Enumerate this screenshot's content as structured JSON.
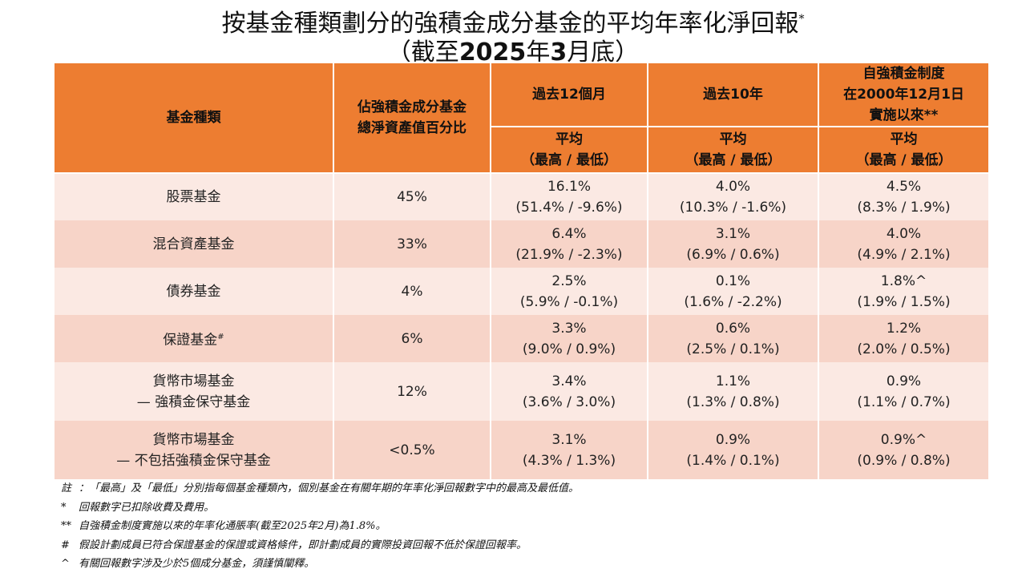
{
  "title": "按基金種類劃分的強積金成分基金的平均年率化淨回報",
  "title_mark": "*",
  "subtitle_open": "（截至",
  "subtitle_year": "2025",
  "subtitle_mid": "年",
  "subtitle_month": "3",
  "subtitle_close": "月底）",
  "header": {
    "fund_type": "基金種類",
    "share_l1": "佔強積金成分基金",
    "share_l2": "總淨資產值百分比",
    "period1": "過去12個月",
    "period2": "過去10年",
    "period3_l1": "自強積金制度",
    "period3_l2": "在2000年12月1日",
    "period3_l3": "實施以來**",
    "avg": "平均",
    "hilo": "（最高 / 最低）"
  },
  "rows": [
    {
      "name_l1": "股票基金",
      "name_l2": "",
      "share": "45%",
      "p1": "16.1%",
      "p1r": "(51.4% / -9.6%)",
      "p2": "4.0%",
      "p2r": "(10.3% / -1.6%)",
      "p3": "4.5%",
      "p3r": "(8.3% / 1.9%)"
    },
    {
      "name_l1": "混合資產基金",
      "name_l2": "",
      "share": "33%",
      "p1": "6.4%",
      "p1r": "(21.9% / -2.3%)",
      "p2": "3.1%",
      "p2r": "(6.9% / 0.6%)",
      "p3": "4.0%",
      "p3r": "(4.9% / 2.1%)"
    },
    {
      "name_l1": "債券基金",
      "name_l2": "",
      "share": "4%",
      "p1": "2.5%",
      "p1r": "(5.9% / -0.1%)",
      "p2": "0.1%",
      "p2r": "(1.6% / -2.2%)",
      "p3": "1.8%^",
      "p3r": "(1.9% / 1.5%)"
    },
    {
      "name_l1": "保證基金",
      "name_l2": "",
      "share": "6%",
      "p1": "3.3%",
      "p1r": "(9.0% / 0.9%)",
      "p2": "0.6%",
      "p2r": "(2.5% / 0.1%)",
      "p3": "1.2%",
      "p3r": "(2.0% / 0.5%)"
    },
    {
      "name_l1": "貨幣市場基金",
      "name_l2": "— 強積金保守基金",
      "share": "12%",
      "p1": "3.4%",
      "p1r": "(3.6% / 3.0%)",
      "p2": "1.1%",
      "p2r": "(1.3% / 0.8%)",
      "p3": "0.9%",
      "p3r": "(1.1% / 0.7%)"
    },
    {
      "name_l1": "貨幣市場基金",
      "name_l2": "— 不包括強積金保守基金",
      "share": "<0.5%",
      "p1": "3.1%",
      "p1r": "(4.3% / 1.3%)",
      "p2": "0.9%",
      "p2r": "(1.4% / 0.1%)",
      "p3": "0.9%^",
      "p3r": "(0.9% / 0.8%)"
    }
  ],
  "guaranteed_mark": "#",
  "notes": [
    {
      "mark": "註",
      "text": "：「最高」及「最低」分別指每個基金種類內，個別基金在有關年期的年率化淨回報數字中的最高及最低值。"
    },
    {
      "mark": "*",
      "text": "回報數字已扣除收費及費用。"
    },
    {
      "mark": "**",
      "text": "自強積金制度實施以來的年率化通脹率(截至2025年2月)為1.8%。"
    },
    {
      "mark": "#",
      "text": "假設計劃成員已符合保證基金的保證或資格條件，即計劃成員的實際投資回報不低於保證回報率。"
    },
    {
      "mark": "^",
      "text": "有關回報數字涉及少於5個成分基金，須謹慎闡釋。"
    }
  ]
}
